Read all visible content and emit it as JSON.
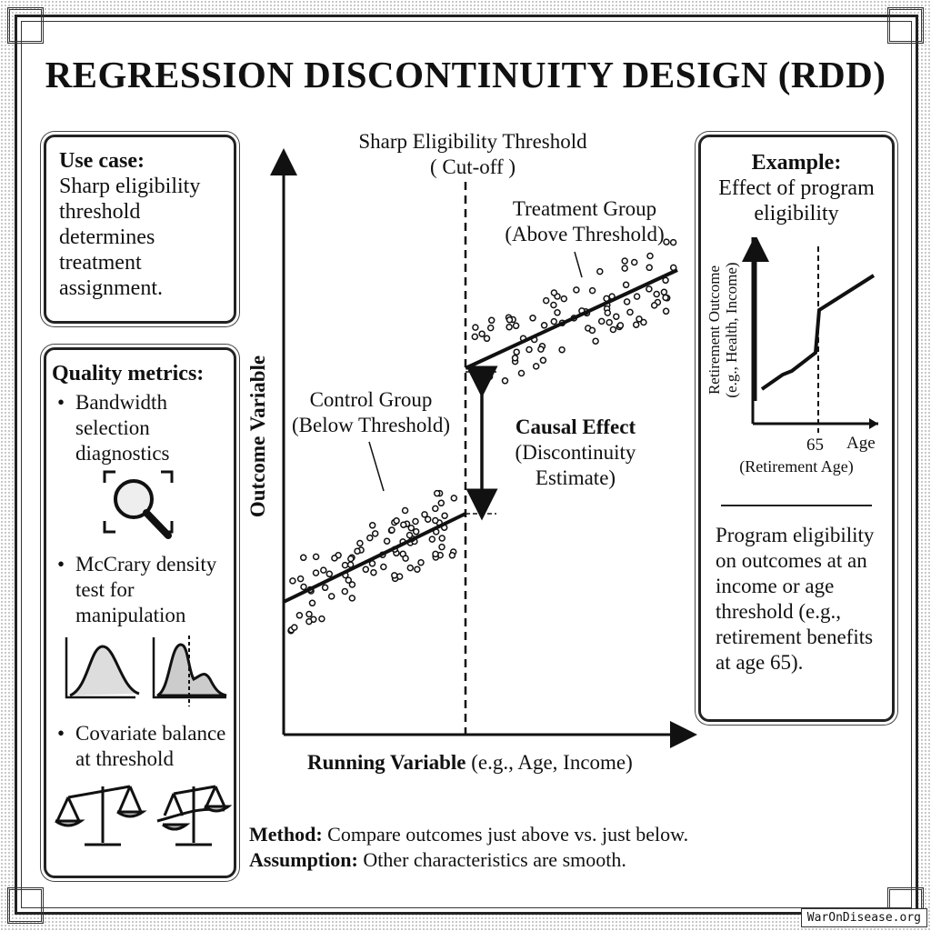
{
  "title": "REGRESSION DISCONTINUITY DESIGN (RDD)",
  "use_case": {
    "heading": "Use case:",
    "text": "Sharp eligibility threshold determines treatment assignment."
  },
  "quality": {
    "heading": "Quality metrics:",
    "items": [
      "Bandwidth selection diagnostics",
      "McCrary density test for manipulation",
      "Covariate balance at threshold"
    ],
    "icons": [
      "magnifier-icon",
      "density-normal-icon",
      "density-discontinuity-icon",
      "balanced-scale-icon",
      "unbalanced-scale-icon"
    ]
  },
  "main": {
    "threshold_label": "Sharp Eligibility Threshold",
    "threshold_sub": "( Cut-off )",
    "treatment_label": "Treatment Group",
    "treatment_sub": "(Above Threshold)",
    "control_label": "Control Group",
    "control_sub": "(Below Threshold)",
    "effect_label": "Causal Effect",
    "effect_sub1": "(Discontinuity",
    "effect_sub2": "Estimate)",
    "y_axis": "Outcome Variable",
    "x_axis_bold": "Running Variable",
    "x_axis_rest": " (e.g., Age, Income)"
  },
  "method": {
    "label": "Method:",
    "text": " Compare outcomes just above vs. just below."
  },
  "assumption": {
    "label": "Assumption:",
    "text": " Other characteristics are smooth."
  },
  "example": {
    "heading": "Example:",
    "sub": "Effect of program eligibility",
    "y_axis1": "Retirement Outcome",
    "y_axis2": "(e.g., Health, Income)",
    "tick": "65",
    "x_axis": "Age",
    "x_sub": "(Retirement Age)",
    "text": "Program eligibility on outcomes at an income or age threshold (e.g., retirement benefits at age 65)."
  },
  "watermark": "WarOnDisease.org"
}
